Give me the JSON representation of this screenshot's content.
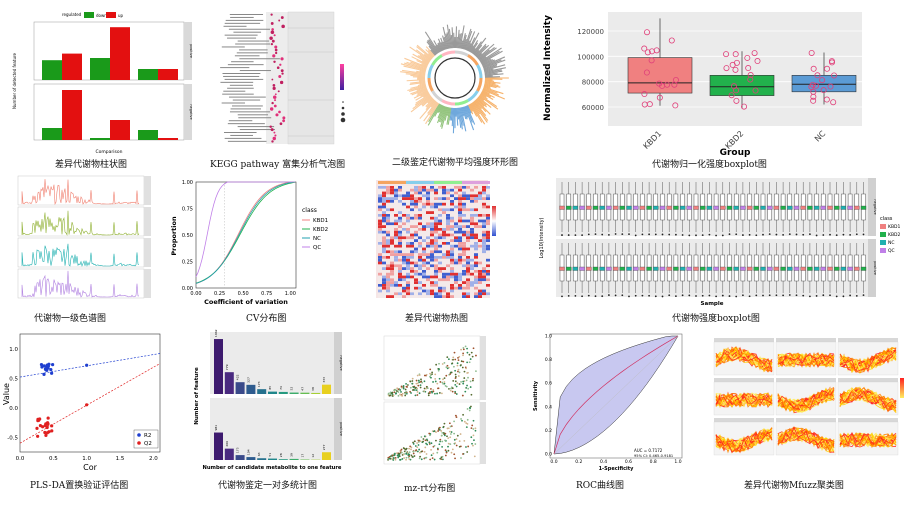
{
  "captions": [
    "差异代谢物柱状图",
    "KEGG pathway 富集分析气泡图",
    "二级鉴定代谢物平均强度环形图",
    "代谢物归一化强度boxplot图",
    "代谢物一级色谱图",
    "CV分布图",
    "差异代谢物热图",
    "代谢物强度boxplot图",
    "PLS-DA置换验证评估图",
    "代谢物鉴定一对多统计图",
    "mz-rt分布图",
    "ROC曲线图",
    "差异代谢物Mfuzz聚类图"
  ],
  "colors": {
    "down": "#1a9a1a",
    "up": "#e31010",
    "kbd1": "#f08080",
    "kbd2": "#22b14c",
    "nc": "#5b9bd5",
    "qc": "#c080e8",
    "r2": "#1f3fd0",
    "q2": "#e02020",
    "bar_purple": "#3d1a6e",
    "roc_fill": "#c8c8f0"
  },
  "bar_panel": {
    "legend_title": "regulated",
    "legend_down": "down",
    "legend_up": "up",
    "xlabel": "Comparison",
    "ylabel": "Number of detected feature",
    "facet_top": "positive",
    "facet_bottom": "negative"
  },
  "boxplot_norm": {
    "ylabel": "Normalized Intensity",
    "xlabel": "Group",
    "groups": [
      "KBD1",
      "KBD2",
      "NC"
    ],
    "yticks": [
      "60000",
      "80000",
      "100000",
      "120000"
    ]
  },
  "cv_panel": {
    "ylabel": "Proportion",
    "xlabel": "Coefficient of variation",
    "legend_title": "class",
    "legend": [
      "KBD1",
      "KBD2",
      "NC",
      "QC"
    ],
    "xticks": [
      "0.00",
      "0.25",
      "0.50",
      "0.75",
      "1.00"
    ],
    "yticks": [
      "0.00",
      "0.25",
      "0.50",
      "0.75",
      "1.00"
    ]
  },
  "intensity_box": {
    "ylabel": "Log10(Intensity)",
    "xlabel": "Sample",
    "legend_title": "class",
    "legend": [
      "KBD1",
      "KBD2",
      "NC",
      "QC"
    ],
    "facet_top": "negative",
    "facet_bottom": "positive"
  },
  "plsda": {
    "ylabel": "Value",
    "xlabel": "Cor",
    "legend": [
      "R2",
      "Q2"
    ],
    "xticks": [
      "0.0",
      "0.5",
      "1.0",
      "1.5",
      "2.0"
    ],
    "yticks": [
      "-0.5",
      "0.0",
      "0.5",
      "1.0"
    ]
  },
  "one_to_many": {
    "ylabel": "Number of feature",
    "xlabel": "Number of candidate metabolite to one feature",
    "facet_top": "negative",
    "facet_bottom": "positive",
    "top_values": [
      1962,
      779,
      422,
      327,
      173,
      85,
      74,
      52,
      47,
      38,
      333
    ],
    "bottom_values": [
      981,
      406,
      175,
      104,
      63,
      51,
      28,
      39,
      17,
      12,
      277
    ],
    "top_labels": [
      "1962",
      "779",
      "422",
      "327",
      "173",
      "85",
      "74",
      "52",
      "47",
      "38",
      "333"
    ],
    "bottom_labels": [
      "981",
      "406",
      "175",
      "104",
      "63",
      "51",
      "28",
      "39",
      "17",
      "12",
      "277"
    ]
  },
  "roc": {
    "ylabel": "Sensitivity",
    "xlabel": "1-Specificity",
    "auc_text": "AUC = 0.7172",
    "ci_text": "95% CI: 0.465-0.9181",
    "xticks": [
      "0.0",
      "0.2",
      "0.4",
      "0.6",
      "0.8",
      "1.0"
    ],
    "yticks": [
      "0.0",
      "0.2",
      "0.4",
      "0.6",
      "0.8",
      "1.0"
    ]
  }
}
